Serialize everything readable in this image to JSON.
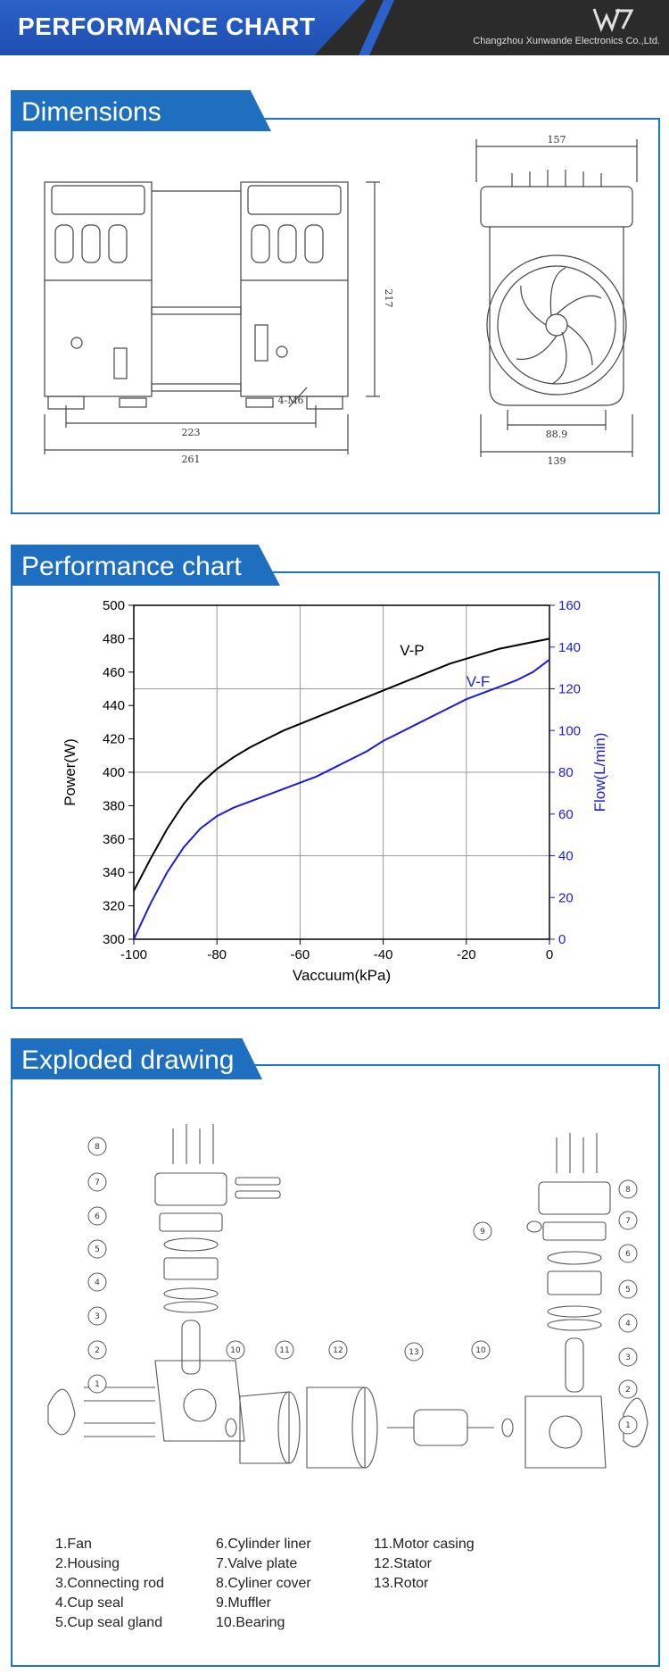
{
  "header": {
    "title": "PERFORMANCE CHART",
    "company": "Changzhou Xunwande Electronics Co.,Ltd."
  },
  "sections": {
    "dimensions": "Dimensions",
    "performance": "Performance chart",
    "exploded": "Exploded drawing"
  },
  "dimensions": {
    "front_width": "261",
    "front_hole_spacing": "223",
    "front_height": "217",
    "mount": "4-M6",
    "side_width": "157",
    "side_base": "139",
    "side_hole": "88.9"
  },
  "chart_data": {
    "type": "line",
    "xlabel": "Vaccuum(kPa)",
    "ylabel_left": "Power(W)",
    "ylabel_right": "Flow(L/min)",
    "xlim": [
      -100,
      0
    ],
    "ylim_left": [
      300,
      500
    ],
    "ylim_right": [
      0,
      160
    ],
    "x_ticks": [
      -100,
      -80,
      -60,
      -40,
      -20,
      0
    ],
    "y_left_ticks": [
      300,
      320,
      340,
      360,
      380,
      400,
      420,
      440,
      460,
      480,
      500
    ],
    "y_right_ticks": [
      0,
      20,
      40,
      60,
      80,
      100,
      120,
      140,
      160
    ],
    "grid": true,
    "series": [
      {
        "name": "V-P",
        "axis": "left",
        "color": "#000000",
        "x": [
          -100,
          -96,
          -92,
          -88,
          -84,
          -80,
          -76,
          -72,
          -68,
          -64,
          -60,
          -56,
          -52,
          -48,
          -44,
          -40,
          -36,
          -32,
          -28,
          -24,
          -20,
          -16,
          -12,
          -8,
          -4,
          0
        ],
        "y": [
          329,
          348,
          366,
          381,
          393,
          402,
          409,
          415,
          420,
          425,
          429,
          433,
          437,
          441,
          445,
          449,
          453,
          457,
          461,
          465,
          468,
          471,
          474,
          476,
          478,
          480
        ]
      },
      {
        "name": "V-F",
        "axis": "right",
        "color": "#1a1adb",
        "x": [
          -100,
          -96,
          -92,
          -88,
          -84,
          -80,
          -76,
          -72,
          -68,
          -64,
          -60,
          -56,
          -52,
          -48,
          -44,
          -40,
          -36,
          -32,
          -28,
          -24,
          -20,
          -16,
          -12,
          -8,
          -4,
          0
        ],
        "y": [
          0,
          17,
          32,
          44,
          53,
          59,
          63,
          66,
          69,
          72,
          75,
          78,
          82,
          86,
          90,
          95,
          99,
          103,
          107,
          111,
          115,
          118,
          121,
          124,
          128,
          134
        ]
      }
    ]
  },
  "parts": {
    "col1": [
      "1.Fan",
      "2.Housing",
      "3.Connecting rod",
      "4.Cup seal",
      "5.Cup seal gland"
    ],
    "col2": [
      "6.Cylinder liner",
      "7.Valve plate",
      "8.Cyliner cover",
      "9.Muffler",
      "10.Bearing"
    ],
    "col3": [
      "11.Motor casing",
      "12.Stator",
      "13.Rotor"
    ],
    "callouts_left": [
      "8",
      "7",
      "6",
      "5",
      "4",
      "3",
      "2",
      "1"
    ],
    "callouts_mid": [
      "10",
      "11",
      "12",
      "13",
      "10"
    ],
    "callouts_right": [
      "9",
      "8",
      "7",
      "6",
      "5",
      "4",
      "3",
      "2",
      "1"
    ]
  }
}
